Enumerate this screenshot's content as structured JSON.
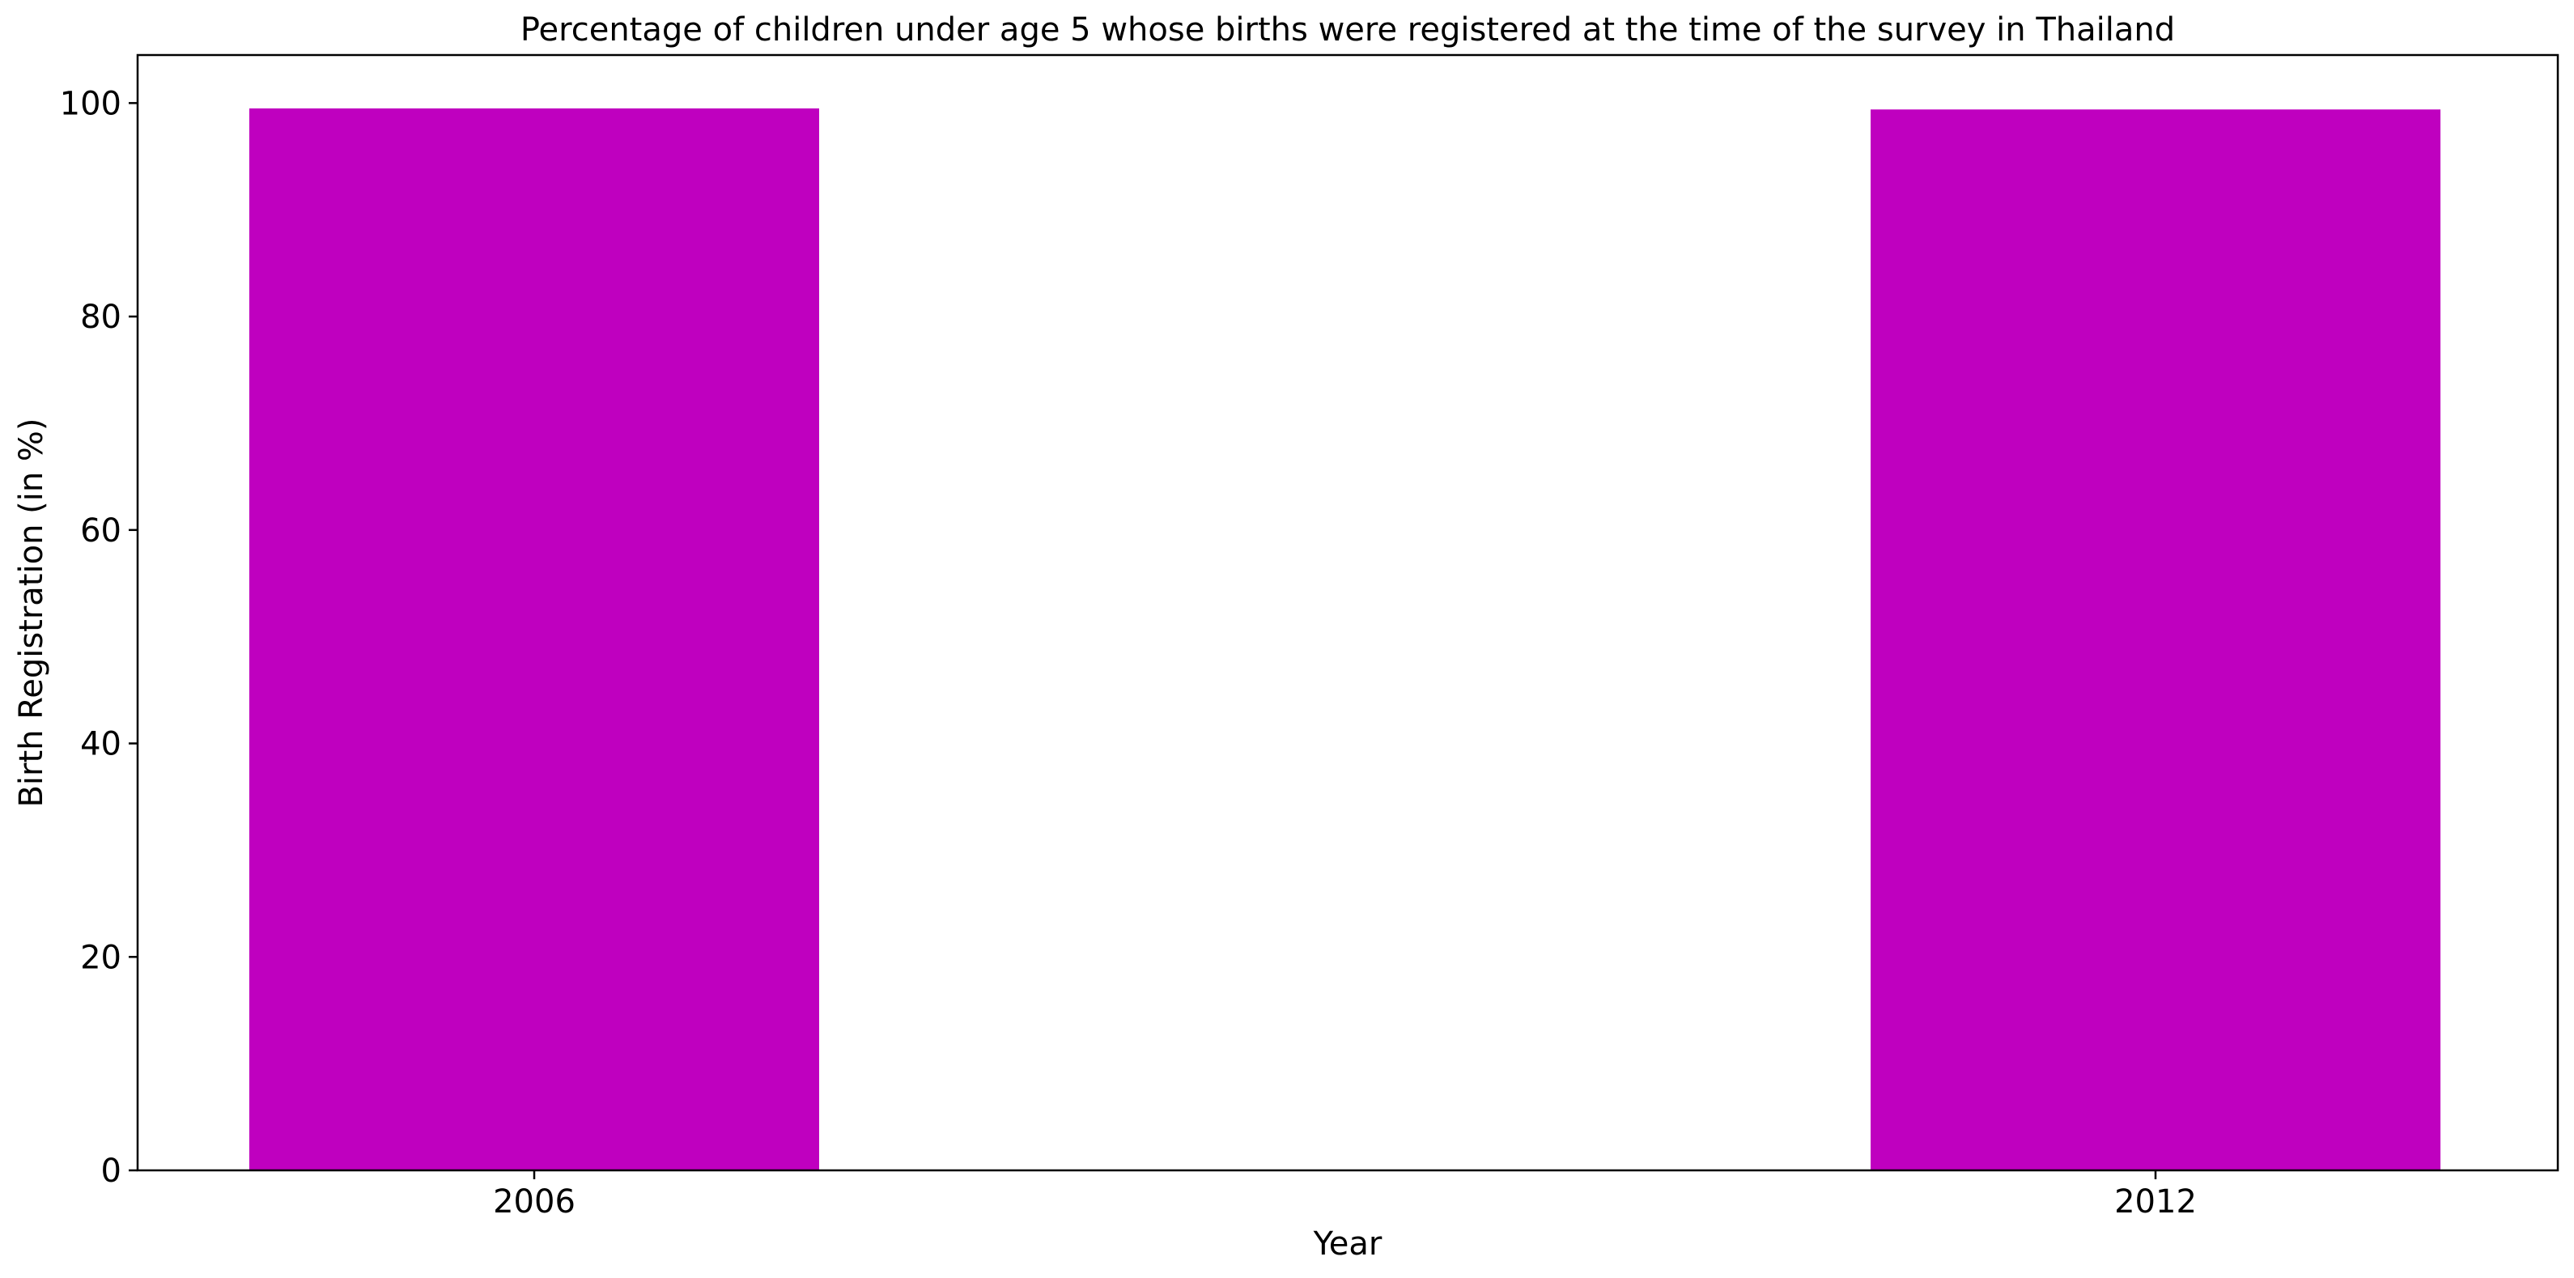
{
  "chart_data": {
    "type": "bar",
    "title": "Percentage of children under age 5 whose births were registered at the time of the survey in Thailand",
    "xlabel": "Year",
    "ylabel": "Birth Registration (in %)",
    "categories": [
      "2006",
      "2012"
    ],
    "values": [
      99.5,
      99.4
    ],
    "ylim": [
      0,
      104.5
    ],
    "yticks": [
      0,
      20,
      40,
      60,
      80,
      100
    ],
    "ytick_labels": [
      "0",
      "20",
      "40",
      "60",
      "80",
      "100"
    ],
    "bar_color": "#bf00bf",
    "grid": false,
    "legend": "none"
  }
}
